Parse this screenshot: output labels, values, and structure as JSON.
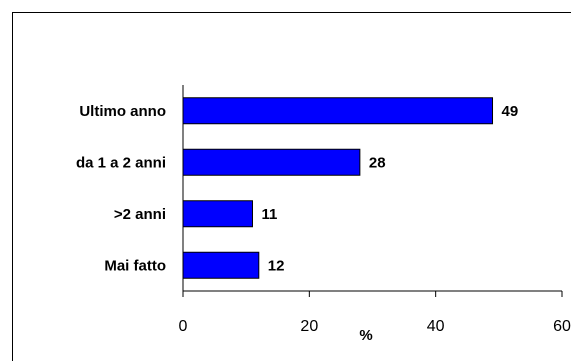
{
  "chart_data": {
    "type": "bar",
    "orientation": "horizontal",
    "categories": [
      "Ultimo anno",
      "da 1 a 2 anni",
      ">2 anni",
      "Mai fatto"
    ],
    "values": [
      49,
      28,
      11,
      12
    ],
    "title": "",
    "xlabel": "%",
    "ylabel": "",
    "xlim": [
      0,
      60
    ],
    "xticks": [
      "0",
      "20",
      "40",
      "60"
    ],
    "bar_color": "#0000FF",
    "grid": false,
    "legend": "none",
    "data_labels": true
  }
}
